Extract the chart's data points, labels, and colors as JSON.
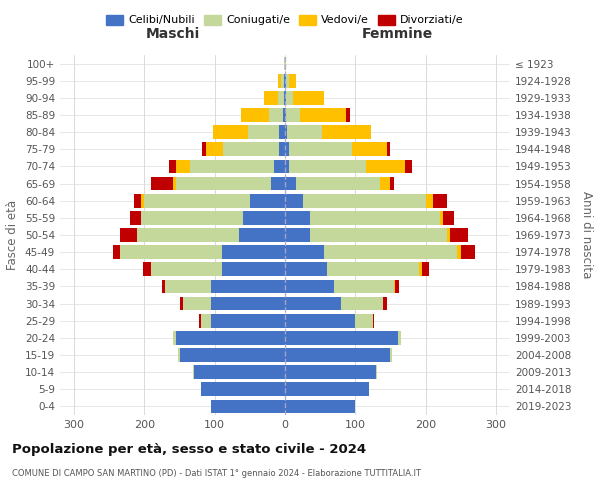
{
  "age_groups": [
    "0-4",
    "5-9",
    "10-14",
    "15-19",
    "20-24",
    "25-29",
    "30-34",
    "35-39",
    "40-44",
    "45-49",
    "50-54",
    "55-59",
    "60-64",
    "65-69",
    "70-74",
    "75-79",
    "80-84",
    "85-89",
    "90-94",
    "95-99",
    "100+"
  ],
  "birth_years": [
    "2019-2023",
    "2014-2018",
    "2009-2013",
    "2004-2008",
    "1999-2003",
    "1994-1998",
    "1989-1993",
    "1984-1988",
    "1979-1983",
    "1974-1978",
    "1969-1973",
    "1964-1968",
    "1959-1963",
    "1954-1958",
    "1949-1953",
    "1944-1948",
    "1939-1943",
    "1934-1938",
    "1929-1933",
    "1924-1928",
    "≤ 1923"
  ],
  "maschi": {
    "celibi": [
      105,
      120,
      130,
      150,
      155,
      105,
      105,
      105,
      90,
      90,
      65,
      60,
      50,
      20,
      15,
      8,
      8,
      3,
      2,
      1,
      0
    ],
    "coniugati": [
      0,
      0,
      1,
      2,
      5,
      15,
      40,
      65,
      100,
      145,
      145,
      145,
      150,
      135,
      120,
      80,
      45,
      20,
      8,
      4,
      1
    ],
    "vedovi": [
      0,
      0,
      0,
      0,
      0,
      0,
      0,
      0,
      0,
      0,
      0,
      0,
      5,
      5,
      20,
      25,
      50,
      40,
      20,
      5,
      0
    ],
    "divorziati": [
      0,
      0,
      0,
      0,
      0,
      2,
      5,
      5,
      12,
      10,
      25,
      15,
      10,
      30,
      10,
      5,
      0,
      0,
      0,
      0,
      0
    ]
  },
  "femmine": {
    "nubili": [
      100,
      120,
      130,
      150,
      160,
      100,
      80,
      70,
      60,
      55,
      35,
      35,
      25,
      15,
      5,
      5,
      3,
      2,
      1,
      1,
      0
    ],
    "coniugate": [
      0,
      0,
      1,
      2,
      5,
      25,
      60,
      85,
      130,
      190,
      195,
      185,
      175,
      120,
      110,
      90,
      50,
      20,
      10,
      5,
      1
    ],
    "vedove": [
      0,
      0,
      0,
      0,
      0,
      0,
      0,
      2,
      5,
      5,
      5,
      5,
      10,
      15,
      55,
      50,
      70,
      65,
      45,
      10,
      0
    ],
    "divorziate": [
      0,
      0,
      0,
      0,
      0,
      2,
      5,
      5,
      10,
      20,
      25,
      15,
      20,
      5,
      10,
      5,
      0,
      5,
      0,
      0,
      0
    ]
  },
  "colors": {
    "celibi_nubili": "#4472c4",
    "coniugati": "#c5d89b",
    "vedovi": "#ffc000",
    "divorziati": "#c00000"
  },
  "title": "Popolazione per età, sesso e stato civile - 2024",
  "subtitle": "COMUNE DI CAMPO SAN MARTINO (PD) - Dati ISTAT 1° gennaio 2024 - Elaborazione TUTTITALIA.IT",
  "xlabel_maschi": "Maschi",
  "xlabel_femmine": "Femmine",
  "ylabel": "Fasce di età",
  "ylabel_right": "Anni di nascita",
  "xlim": 320,
  "legend_labels": [
    "Celibi/Nubili",
    "Coniugati/e",
    "Vedovi/e",
    "Divorziati/e"
  ],
  "background_color": "#ffffff"
}
